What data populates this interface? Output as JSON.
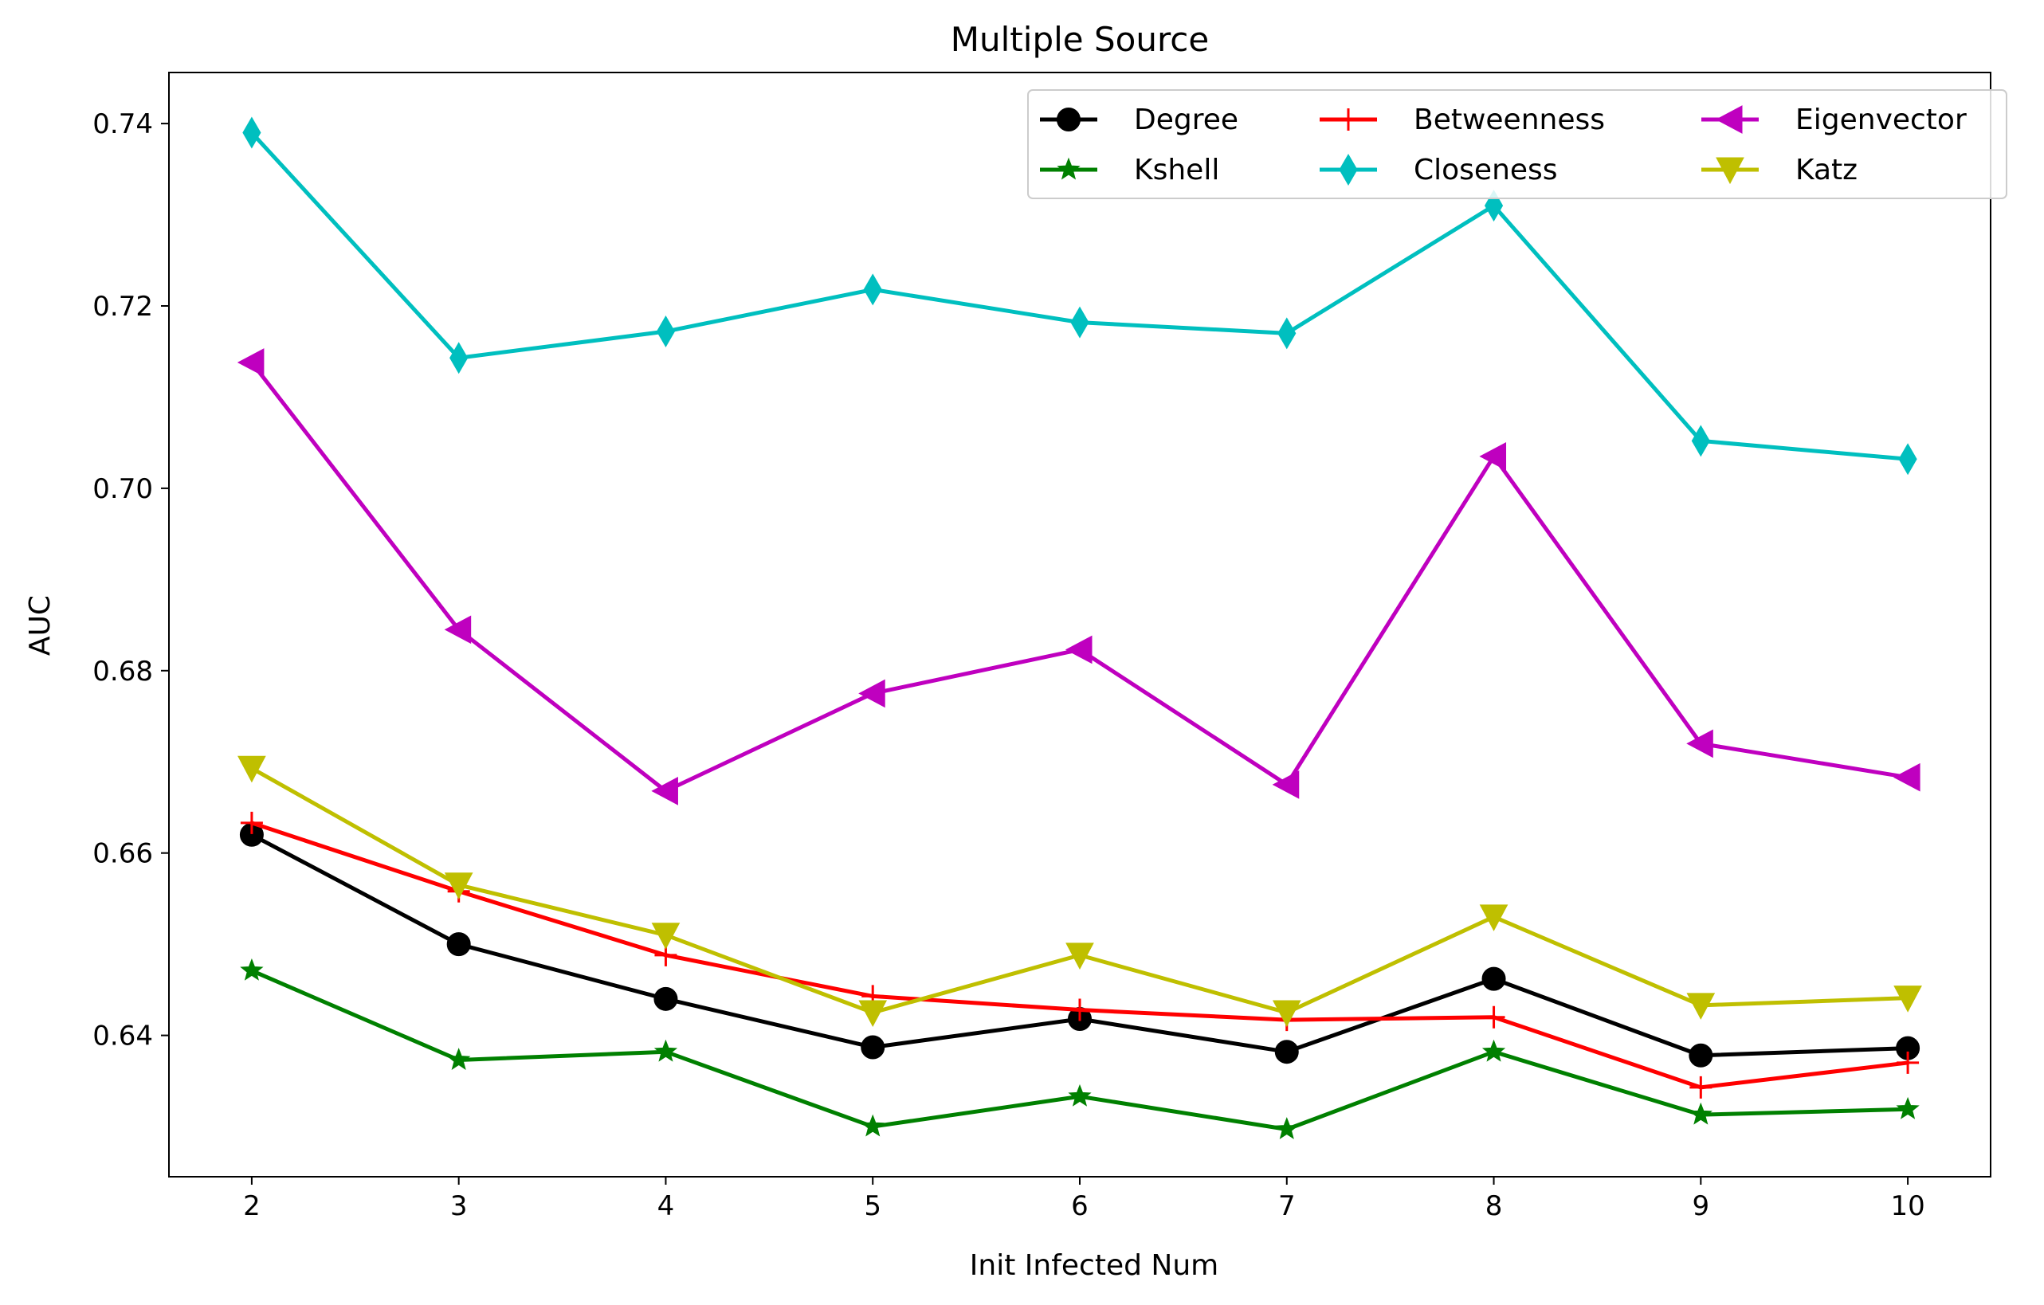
{
  "chart_data": {
    "type": "line",
    "title": "Multiple Source",
    "xlabel": "Init Infected Num",
    "ylabel": "AUC",
    "x": [
      2,
      3,
      4,
      5,
      6,
      7,
      8,
      9,
      10
    ],
    "xlim": [
      1.6,
      10.4
    ],
    "ylim": [
      0.6245,
      0.7456
    ],
    "xticks": [
      2,
      3,
      4,
      5,
      6,
      7,
      8,
      9,
      10
    ],
    "yticks": [
      0.64,
      0.66,
      0.68,
      0.7,
      0.72,
      0.74
    ],
    "ytick_labels": [
      "0.64",
      "0.66",
      "0.68",
      "0.70",
      "0.72",
      "0.74"
    ],
    "grid": false,
    "legend_position": "top-right",
    "series": [
      {
        "name": "Degree",
        "color": "#000000",
        "marker": "circle",
        "values": [
          0.662,
          0.65,
          0.644,
          0.6387,
          0.6418,
          0.6382,
          0.6462,
          0.6378,
          0.6386
        ]
      },
      {
        "name": "Betweenness",
        "color": "#ff0000",
        "marker": "plus",
        "values": [
          0.6633,
          0.6558,
          0.6488,
          0.6443,
          0.6428,
          0.6417,
          0.642,
          0.6343,
          0.637
        ]
      },
      {
        "name": "Eigenvector",
        "color": "#bf00bf",
        "marker": "triangle-left",
        "values": [
          0.7138,
          0.6845,
          0.6668,
          0.6775,
          0.6823,
          0.6675,
          0.7035,
          0.672,
          0.6683
        ]
      },
      {
        "name": "Kshell",
        "color": "#008000",
        "marker": "star",
        "values": [
          0.6471,
          0.6373,
          0.6382,
          0.63,
          0.6333,
          0.6297,
          0.6382,
          0.6313,
          0.6319
        ]
      },
      {
        "name": "Closeness",
        "color": "#00bfbf",
        "marker": "thin-diamond",
        "values": [
          0.739,
          0.7143,
          0.7172,
          0.7218,
          0.7182,
          0.717,
          0.731,
          0.7052,
          0.7032
        ]
      },
      {
        "name": "Katz",
        "color": "#bfbf00",
        "marker": "triangle-down",
        "values": [
          0.6693,
          0.6565,
          0.651,
          0.6425,
          0.6488,
          0.6425,
          0.653,
          0.6433,
          0.6441
        ]
      }
    ]
  }
}
